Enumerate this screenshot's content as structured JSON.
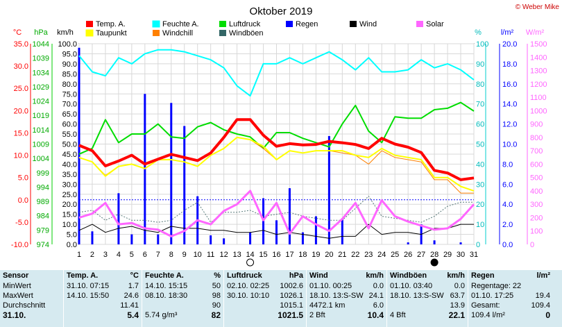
{
  "copyright": "© Weber Mike",
  "chart_data": {
    "type": "line",
    "title": "Oktober 2019",
    "x": [
      1,
      2,
      3,
      4,
      5,
      6,
      7,
      8,
      9,
      10,
      11,
      12,
      13,
      14,
      15,
      16,
      17,
      18,
      19,
      20,
      21,
      22,
      23,
      24,
      25,
      26,
      27,
      28,
      29,
      30,
      31
    ],
    "legend": [
      {
        "name": "Temp. A.",
        "color": "#ff0000"
      },
      {
        "name": "Feuchte A.",
        "color": "#00ffff"
      },
      {
        "name": "Luftdruck",
        "color": "#00dd00"
      },
      {
        "name": "Regen",
        "color": "#0000ff"
      },
      {
        "name": "Wind",
        "color": "#000000"
      },
      {
        "name": "Solar",
        "color": "#ff66ff"
      },
      {
        "name": "Taupunkt",
        "color": "#ffff00"
      },
      {
        "name": "Windchill",
        "color": "#ff8000"
      },
      {
        "name": "Windböen",
        "color": "#336666"
      }
    ],
    "axes": {
      "temp": {
        "unit": "°C",
        "min": -10,
        "max": 35,
        "ticks": [
          "-10.0",
          "-5.0",
          "0.0",
          "5.0",
          "10.0",
          "15.0",
          "20.0",
          "25.0",
          "30.0",
          "35.0"
        ]
      },
      "pressure": {
        "unit": "hPa",
        "min": 974,
        "max": 1044,
        "ticks": [
          "974",
          "979",
          "984",
          "989",
          "994",
          "999",
          "1004",
          "1009",
          "1014",
          "1019",
          "1024",
          "1029",
          "1034",
          "1039",
          "1044"
        ]
      },
      "wind": {
        "unit": "km/h",
        "min": 0,
        "max": 100,
        "ticks": [
          "0.0",
          "5.0",
          "10.0",
          "15.0",
          "20.0",
          "25.0",
          "30.0",
          "35.0",
          "40.0",
          "45.0",
          "50.0",
          "55.0",
          "60.0",
          "65.0",
          "70.0",
          "75.0",
          "80.0",
          "85.0",
          "90.0",
          "95.0",
          "100.0"
        ]
      },
      "humidity": {
        "unit": "%",
        "min": 0,
        "max": 100,
        "ticks": [
          "0",
          "10",
          "20",
          "30",
          "40",
          "50",
          "60",
          "70",
          "80",
          "90",
          "100"
        ]
      },
      "rain": {
        "unit": "l/m²",
        "min": 0,
        "max": 20,
        "ticks": [
          "0.0",
          "2.0",
          "4.0",
          "6.0",
          "8.0",
          "10.0",
          "12.0",
          "14.0",
          "16.0",
          "18.0",
          "20.0"
        ]
      },
      "solar": {
        "unit": "W/m²",
        "min": 0,
        "max": 1500,
        "ticks": [
          "0",
          "100",
          "200",
          "300",
          "400",
          "500",
          "600",
          "700",
          "800",
          "900",
          "1000",
          "1100",
          "1200",
          "1300",
          "1400",
          "1500"
        ]
      }
    },
    "series": {
      "temp": [
        12.2,
        11.0,
        7.6,
        8.7,
        10.0,
        8.0,
        9.1,
        10.2,
        9.5,
        8.8,
        10.5,
        14.0,
        18.0,
        18.0,
        14.5,
        12.0,
        12.6,
        12.3,
        12.4,
        13.1,
        12.8,
        12.4,
        11.5,
        13.8,
        12.5,
        11.8,
        10.6,
        6.6,
        6.0,
        4.5,
        4.9
      ],
      "dewpoint": [
        9.5,
        8.5,
        5.3,
        7.5,
        8.0,
        7.0,
        9.0,
        9.0,
        8.5,
        7.5,
        10.0,
        11.5,
        14.0,
        13.5,
        12.0,
        9.0,
        11.0,
        10.5,
        11.0,
        11.0,
        11.0,
        10.0,
        9.5,
        11.5,
        10.0,
        9.5,
        9.0,
        5.0,
        5.0,
        3.0,
        2.0
      ],
      "windchill": [
        9.5,
        8.5,
        5.5,
        7.5,
        8.0,
        7.0,
        9.0,
        9.0,
        8.5,
        7.5,
        10.0,
        11.5,
        14.0,
        13.5,
        11.5,
        9.0,
        11.0,
        10.5,
        11.0,
        11.0,
        10.5,
        10.0,
        8.0,
        11.0,
        9.5,
        9.0,
        8.5,
        4.5,
        4.5,
        1.5,
        1.5
      ],
      "humidity": [
        94,
        86,
        84,
        93,
        90,
        95,
        97,
        97,
        96,
        94,
        92,
        88,
        79,
        74,
        90,
        90,
        93,
        90,
        93,
        96,
        92,
        87,
        93,
        86,
        86,
        87,
        92,
        88,
        90,
        87,
        82
      ],
      "pressure": [
        1005.5,
        1007.5,
        1017.5,
        1009.5,
        1012.5,
        1012.5,
        1016.0,
        1011.5,
        1011.0,
        1015.0,
        1016.5,
        1014.0,
        1012.5,
        1011.5,
        1007.5,
        1013.0,
        1013.0,
        1011.0,
        1009.5,
        1008.0,
        1016.0,
        1022.5,
        1013.5,
        1009.5,
        1018.5,
        1018.0,
        1018.0,
        1021.0,
        1021.5,
        1023.5,
        1020.5
      ],
      "wind": [
        7,
        10,
        6,
        8,
        9,
        7,
        6,
        9,
        8,
        8,
        7,
        7,
        6,
        6,
        7,
        5,
        6,
        5,
        4,
        3,
        4,
        4,
        10,
        5,
        6,
        6,
        5,
        8,
        8,
        10,
        10
      ],
      "gusts": [
        16,
        17,
        12,
        15,
        12,
        12,
        11,
        12,
        17,
        21,
        11,
        16,
        16,
        17,
        14,
        15,
        16,
        14,
        13,
        12,
        12,
        18,
        24,
        14,
        13,
        12,
        11,
        14,
        19,
        21,
        21
      ],
      "rain": [
        19.6,
        1.3,
        0,
        5.1,
        1.0,
        15.0,
        1.0,
        14.1,
        11.8,
        4.8,
        0.9,
        0.6,
        0,
        1.2,
        4.6,
        2.4,
        5.6,
        1.2,
        2.8,
        10.8,
        2.6,
        0,
        0,
        0,
        0,
        0.2,
        2.0,
        0.4,
        0,
        0.2,
        0
      ],
      "solar": [
        200,
        230,
        310,
        150,
        160,
        120,
        110,
        60,
        100,
        180,
        150,
        250,
        300,
        400,
        180,
        310,
        80,
        210,
        150,
        100,
        190,
        310,
        120,
        330,
        210,
        170,
        140,
        110,
        120,
        190,
        300
      ]
    }
  },
  "stats": {
    "headers": [
      "Sensor",
      "Temp. A.",
      "°C",
      "Feuchte A.",
      "%",
      "Luftdruck",
      "hPa",
      "Wind",
      "km/h",
      "Windböen",
      "km/h",
      "Regen",
      "l/m²"
    ],
    "rows": [
      {
        "label": "MinWert",
        "cells": [
          [
            "31.10.  07:15",
            "1.7"
          ],
          [
            "14.10.  15:15",
            "50"
          ],
          [
            "02.10.  02:25",
            "1002.6"
          ],
          [
            "01.10.  00:25",
            "0.0"
          ],
          [
            "01.10.  03:40",
            "0.0"
          ],
          [
            "Regentage: 22",
            ""
          ]
        ]
      },
      {
        "label": "MaxWert",
        "cells": [
          [
            "14.10.  15:50",
            "24.6"
          ],
          [
            "08.10.  18:30",
            "98"
          ],
          [
            "30.10.  10:10",
            "1026.1"
          ],
          [
            "18.10.  13:S-SW",
            "24.1"
          ],
          [
            "18.10.  13:S-SW",
            "63.7"
          ],
          [
            "01.10.  17:25",
            "19.4"
          ]
        ]
      },
      {
        "label": "Durchschnitt",
        "cells": [
          [
            "",
            "11.41"
          ],
          [
            "",
            "90"
          ],
          [
            "",
            "1015.1"
          ],
          [
            "4472.1 km",
            "6.0"
          ],
          [
            "",
            "13.9"
          ],
          [
            "Gesamt:",
            "109.4"
          ]
        ]
      },
      {
        "label": "31.10.",
        "cells": [
          [
            "",
            "5.4"
          ],
          [
            "5.74 g/m³",
            "82"
          ],
          [
            "",
            "1021.5"
          ],
          [
            "2 Bft",
            "10.4"
          ],
          [
            "4 Bft",
            "22.1"
          ],
          [
            "109.4 l/m²",
            "0"
          ]
        ]
      }
    ]
  }
}
